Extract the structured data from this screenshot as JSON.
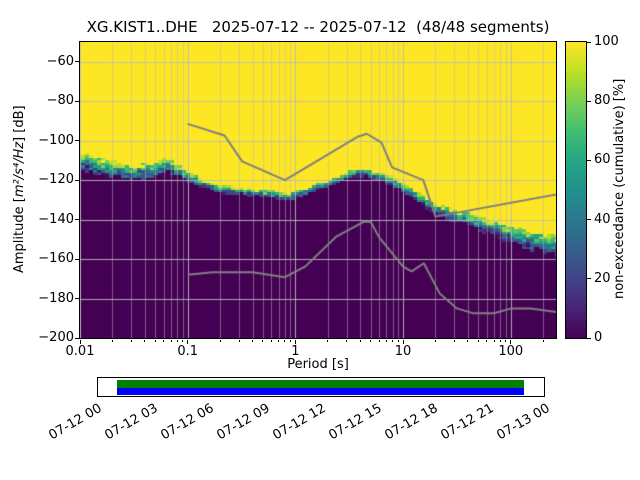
{
  "title": "XG.KIST1..DHE   2025-07-12 -- 2025-07-12  (48/48 segments)",
  "axes": {
    "xlabel": "Period [s]",
    "ylabel": {
      "prefix": "Amplitude [",
      "math": "m²/s⁴/Hz",
      "suffix": "] [dB]"
    },
    "x_ticks": [
      {
        "log10": -2,
        "label": "0.01"
      },
      {
        "log10": -1,
        "label": "0.1"
      },
      {
        "log10": 0,
        "label": "1"
      },
      {
        "log10": 1,
        "label": "10"
      },
      {
        "log10": 2,
        "label": "100"
      }
    ],
    "y_ticks": [
      {
        "value": -60,
        "label": "−60"
      },
      {
        "value": -80,
        "label": "−80"
      },
      {
        "value": -100,
        "label": "−100"
      },
      {
        "value": -120,
        "label": "−120"
      },
      {
        "value": -140,
        "label": "−140"
      },
      {
        "value": -160,
        "label": "−160"
      },
      {
        "value": -180,
        "label": "−180"
      },
      {
        "value": -200,
        "label": "−200"
      }
    ],
    "xlim_log10": [
      -2,
      2.42
    ],
    "ylim_db": [
      -200,
      -50
    ],
    "grid_major": "rgba(185,185,185,0.9)",
    "grid_minor": "rgba(185,185,185,0.5)"
  },
  "colorbar": {
    "label": "non-exceedance (cumulative) [%]",
    "min": 0,
    "max": 100,
    "ticks": [
      {
        "value": 0,
        "label": "0"
      },
      {
        "value": 20,
        "label": "20"
      },
      {
        "value": 40,
        "label": "40"
      },
      {
        "value": 60,
        "label": "60"
      },
      {
        "value": 80,
        "label": "80"
      },
      {
        "value": 100,
        "label": "100"
      }
    ]
  },
  "chart_data": {
    "type": "heatmap",
    "x_scale": "log",
    "xlabel": "Period [s]",
    "ylabel": "Amplitude [m2/s4/Hz] [dB]",
    "zlabel": "non-exceedance (cumulative) [%]",
    "periods_s": [
      0.01,
      0.017,
      0.03,
      0.05,
      0.065,
      0.09,
      0.13,
      0.2,
      0.35,
      0.6,
      0.85,
      1.2,
      1.8,
      2.6,
      3.5,
      4.5,
      6.0,
      8.0,
      11.0,
      15.0,
      22.0,
      35.0,
      60.0,
      100.0,
      160.0,
      260.0
    ],
    "median_db": [
      -110,
      -114,
      -116,
      -115,
      -112.5,
      -117,
      -121,
      -124.5,
      -126,
      -127.5,
      -128.5,
      -126.5,
      -122.5,
      -119,
      -116.5,
      -116,
      -118,
      -121,
      -125,
      -130,
      -135.5,
      -139,
      -143.5,
      -147.5,
      -151,
      -153
    ],
    "transition_width_db": [
      10,
      9,
      8,
      8,
      8,
      6,
      5,
      4.5,
      4,
      4,
      4,
      4,
      4,
      4,
      4,
      4,
      4.5,
      5,
      5.5,
      6,
      6.5,
      7,
      8,
      9,
      10,
      11
    ],
    "colormap": {
      "name": "viridis",
      "anchors": [
        [
          0.0,
          68,
          1,
          84
        ],
        [
          0.1,
          72,
          36,
          117
        ],
        [
          0.2,
          65,
          68,
          135
        ],
        [
          0.3,
          53,
          95,
          141
        ],
        [
          0.4,
          42,
          120,
          142
        ],
        [
          0.5,
          33,
          145,
          140
        ],
        [
          0.6,
          34,
          168,
          132
        ],
        [
          0.7,
          66,
          190,
          113
        ],
        [
          0.8,
          122,
          209,
          81
        ],
        [
          0.9,
          189,
          223,
          38
        ],
        [
          1.0,
          253,
          231,
          37
        ]
      ]
    },
    "noise_models": {
      "color": "#808080",
      "high": {
        "periods_s": [
          0.1,
          0.22,
          0.32,
          0.8,
          3.8,
          4.6,
          6.3,
          7.9,
          15.4,
          20.0,
          354.8
        ],
        "db": [
          -91.5,
          -97.4,
          -110.5,
          -120.0,
          -98.0,
          -96.5,
          -101.0,
          -113.5,
          -120.0,
          -138.5,
          -126.0
        ]
      },
      "low": {
        "periods_s": [
          0.1,
          0.17,
          0.4,
          0.8,
          1.24,
          2.4,
          4.3,
          5.0,
          6.0,
          10.0,
          12.0,
          15.6,
          21.9,
          31.6,
          45.0,
          70.0,
          101.0,
          154.0,
          328.0
        ],
        "db": [
          -168.0,
          -166.7,
          -166.7,
          -169.2,
          -163.7,
          -148.6,
          -141.1,
          -141.1,
          -149.0,
          -163.8,
          -166.2,
          -162.1,
          -177.5,
          -185.0,
          -187.5,
          -187.5,
          -185.0,
          -185.0,
          -187.5
        ]
      }
    }
  },
  "timeline": {
    "labels": [
      "07-12 00",
      "07-12 03",
      "07-12 06",
      "07-12 09",
      "07-12 12",
      "07-12 15",
      "07-12 18",
      "07-12 21",
      "07-13 00"
    ],
    "coverage": {
      "start_frac": 0.043,
      "end_frac": 0.955
    },
    "colors": {
      "processed": "#008000",
      "data": "#0000ff"
    }
  }
}
